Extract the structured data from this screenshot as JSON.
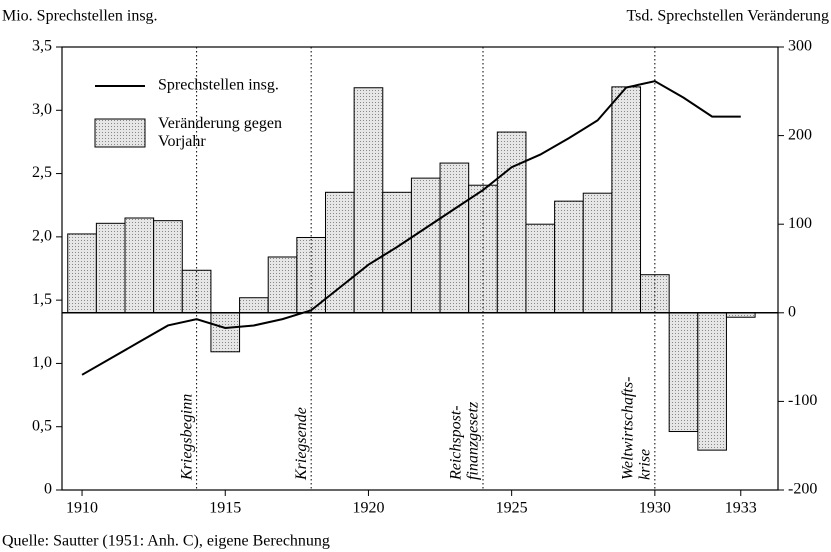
{
  "chart_data": {
    "type": "bar_line",
    "y_label": "Mio. Sprechstellen insg.",
    "y2_label": "Tsd. Sprechstellen Veränderung",
    "source": "Quelle: Sautter (1951: Anh. C), eigene Berechnung",
    "x": [
      1910,
      1911,
      1912,
      1913,
      1914,
      1915,
      1916,
      1917,
      1918,
      1919,
      1920,
      1921,
      1922,
      1923,
      1924,
      1925,
      1926,
      1927,
      1928,
      1929,
      1930,
      1931,
      1932,
      1933
    ],
    "series": [
      {
        "name": "Sprechstellen insg.",
        "type": "line",
        "color": "#000000",
        "axis": "y",
        "values": [
          0.91,
          1.04,
          1.17,
          1.3,
          1.35,
          1.28,
          1.3,
          1.35,
          1.42,
          1.6,
          1.78,
          1.92,
          2.07,
          2.22,
          2.37,
          2.55,
          2.65,
          2.78,
          2.92,
          3.18,
          3.23,
          3.1,
          2.95,
          2.95
        ]
      },
      {
        "name": "Veränderung gegen Vorjahr",
        "type": "bar",
        "color": "#d4d4d4",
        "axis": "y2",
        "values": [
          89,
          101,
          107,
          104,
          48,
          -44,
          17,
          63,
          85,
          136,
          254,
          136,
          152,
          169,
          144,
          204,
          100,
          126,
          135,
          255,
          43,
          -134,
          -155,
          -5
        ]
      }
    ],
    "annotations": [
      {
        "x": 1914,
        "lines": [
          "Kriegsbeginn"
        ]
      },
      {
        "x": 1918,
        "lines": [
          "Kriegsende"
        ]
      },
      {
        "x": 1924,
        "lines": [
          "Reichspost-",
          "finanzgesetz"
        ]
      },
      {
        "x": 1930,
        "lines": [
          "Weltwirtschafts-",
          "krise"
        ]
      }
    ],
    "xlim": [
      1909.3,
      1934.3
    ],
    "xticks": [
      1910,
      1915,
      1920,
      1925,
      1930,
      1933
    ],
    "ylim": [
      0,
      3.5
    ],
    "yticks": [
      0,
      {
        "value": 0.5,
        "label": "0,5"
      },
      {
        "value": 1,
        "label": "1,0"
      },
      {
        "value": 1.5,
        "label": "1,5"
      },
      {
        "value": 2,
        "label": "2,0"
      },
      {
        "value": 2.5,
        "label": "2,5"
      },
      {
        "value": 3,
        "label": "3,0"
      },
      {
        "value": 3.5,
        "label": "3,5"
      }
    ],
    "y2lim": [
      -200,
      300
    ],
    "y2ticks": [
      -200,
      -100,
      0,
      100,
      200,
      300
    ],
    "legend": "upper left"
  }
}
